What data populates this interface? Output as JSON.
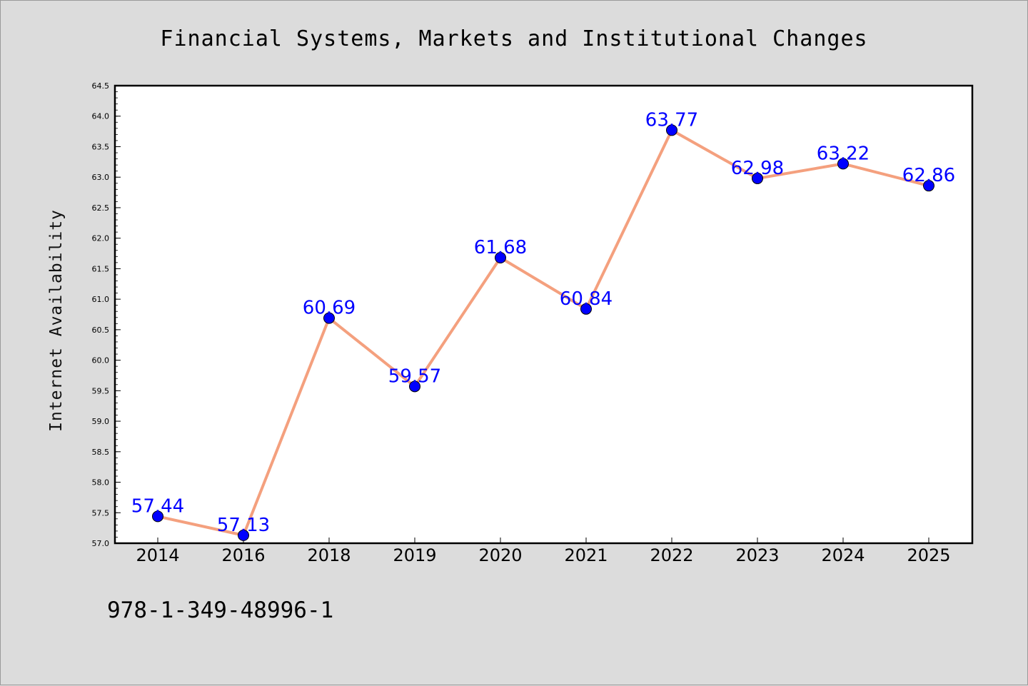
{
  "chart_data": {
    "type": "line",
    "title": "Financial Systems, Markets and Institutional Changes",
    "ylabel": "Internet Availability",
    "xlabel": "",
    "categories": [
      "2014",
      "2016",
      "2018",
      "2019",
      "2020",
      "2021",
      "2022",
      "2023",
      "2024",
      "2025"
    ],
    "values": [
      57.44,
      57.13,
      60.69,
      59.57,
      61.68,
      60.84,
      63.77,
      62.98,
      63.22,
      62.86
    ],
    "data_labels": [
      "57.44",
      "57.13",
      "60.69",
      "59.57",
      "61.68",
      "60.84",
      "63.77",
      "62.98",
      "63.22",
      "62.86"
    ],
    "ylim": [
      57.0,
      64.5
    ],
    "yticks": [
      "57.0",
      "57.5",
      "58.0",
      "58.5",
      "59.0",
      "59.5",
      "60.0",
      "60.5",
      "61.0",
      "61.5",
      "62.0",
      "62.5",
      "63.0",
      "63.5",
      "64.0",
      "64.5"
    ],
    "grid": false,
    "line_color": "#f4a07e",
    "marker_color": "#0000ff",
    "label_color": "#0000ff",
    "plot_background": "#ffffff",
    "figure_background": "#dcdcdc"
  },
  "footer": {
    "isbn": "978-1-349-48996-1"
  }
}
